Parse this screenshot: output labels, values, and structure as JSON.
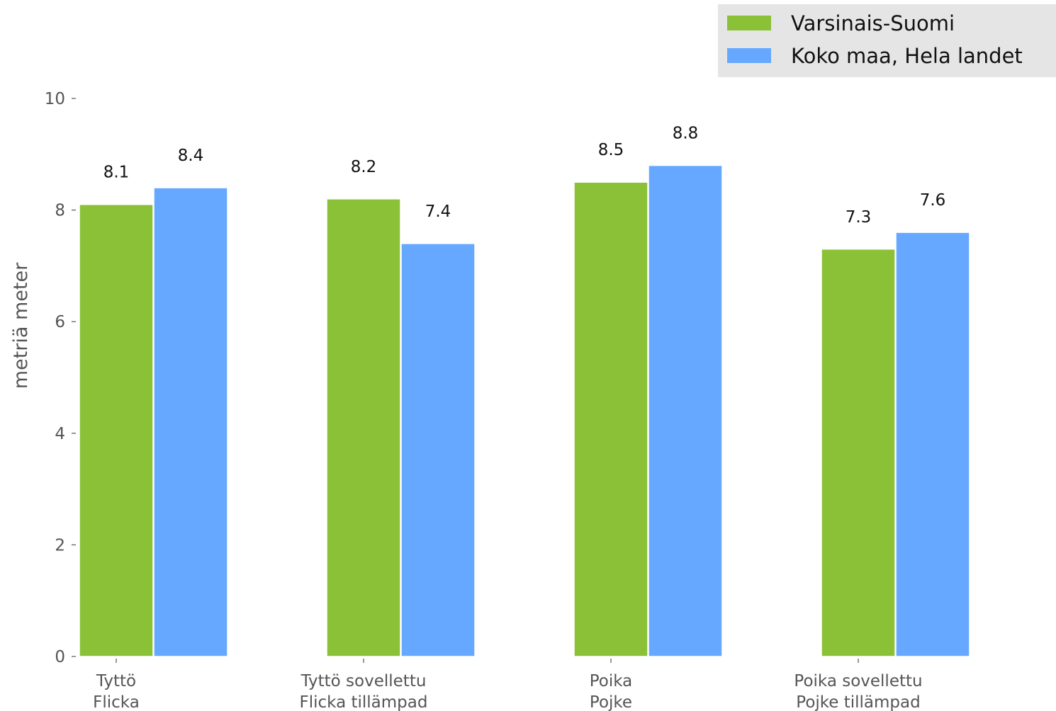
{
  "chart_data": {
    "type": "bar",
    "categories": [
      [
        "Tyttö",
        "Flicka"
      ],
      [
        "Tyttö sovellettu",
        "Flicka tillämpad"
      ],
      [
        "Poika",
        "Pojke"
      ],
      [
        "Poika sovellettu",
        "Pojke tillämpad"
      ]
    ],
    "series": [
      {
        "name": "Varsinais-Suomi",
        "color": "#8bc136",
        "values": [
          8.1,
          8.2,
          8.5,
          7.3
        ],
        "labels": [
          "8.1",
          "8.2",
          "8.5",
          "7.3"
        ]
      },
      {
        "name": "Koko maa, Hela landet",
        "color": "#66a8ff",
        "values": [
          8.4,
          7.4,
          8.8,
          7.6
        ],
        "labels": [
          "8.4",
          "7.4",
          "8.8",
          "7.6"
        ]
      }
    ],
    "ylabel": "metriä meter",
    "ylim": [
      0,
      10
    ],
    "yticks": [
      0,
      2,
      4,
      6,
      8,
      10
    ],
    "ytick_labels": [
      "0",
      "2",
      "4",
      "6",
      "8",
      "10"
    ],
    "grid": false,
    "legend_position": "top-right",
    "legend_background": "#e5e5e5"
  }
}
